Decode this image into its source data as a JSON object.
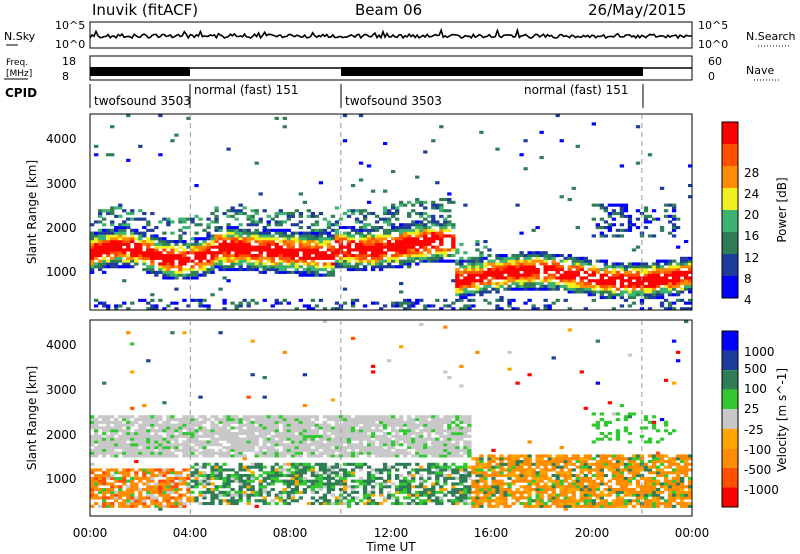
{
  "header": {
    "station": "Inuvik (fitACF)",
    "beam": "Beam 06",
    "date": "26/May/2015"
  },
  "strip": {
    "nsky_label": "N.Sky",
    "nsky_ticks": [
      "10^5",
      "10^0"
    ],
    "nsearch_label": "N.Search",
    "nsearch_ticks": [
      "10^5",
      "10^0"
    ],
    "freq_label": "Freq.",
    "freq_unit": "[MHz]",
    "freq_ticks": [
      "18",
      "8"
    ],
    "nave_label": "Nave",
    "nave_ticks": [
      "60",
      "0"
    ],
    "cpid_label": "CPID"
  },
  "cpid": [
    {
      "name": "twofsound 3503",
      "start": 0,
      "end": 4
    },
    {
      "name": "normal (fast) 151",
      "start": 4,
      "end": 10
    },
    {
      "name": "twofsound 3503",
      "start": 10,
      "end": 22
    },
    {
      "name": "normal (fast) 151",
      "start": 22,
      "end": 24
    }
  ],
  "colors": {
    "power": [
      "#0000ff",
      "#1e3c9a",
      "#2e7d55",
      "#3cb371",
      "#f0f020",
      "#ff8c00",
      "#ff5000",
      "#ff0000"
    ],
    "velocity": [
      "#0000ff",
      "#1e3c9a",
      "#2e7d55",
      "#32c832",
      "#c8c8c8",
      "#ffa500",
      "#ff8c00",
      "#ff5000",
      "#ff0000"
    ]
  },
  "chart_data": [
    {
      "type": "heatmap",
      "xlabel": "",
      "ylabel": "Slant Range [km]",
      "xlim": [
        0,
        24
      ],
      "ylim": [
        180,
        4600
      ],
      "y_ticks": [
        "1000",
        "2000",
        "3000",
        "4000"
      ],
      "colorbar": {
        "label": "Power [dB]",
        "ticks": [
          "4",
          "8",
          "12",
          "16",
          "20",
          "24",
          "28"
        ]
      },
      "bands": [
        {
          "start": 0,
          "end": 5,
          "r_from": 1500,
          "r_to": 2200,
          "quantity": "mixed"
        },
        {
          "start": 5,
          "end": 9,
          "r_from": 1400,
          "r_to": 2300,
          "quantity": "high"
        },
        {
          "start": 10,
          "end": 14,
          "r_from": 1300,
          "r_to": 2300,
          "quantity": "high"
        },
        {
          "start": 15,
          "end": 23,
          "r_from": 500,
          "r_to": 1400,
          "quantity": "high"
        }
      ]
    },
    {
      "type": "heatmap",
      "xlabel": "Time UT",
      "ylabel": "Slant Range [km]",
      "xlim": [
        0,
        24
      ],
      "ylim": [
        180,
        4600
      ],
      "x_ticks": [
        "00:00",
        "04:00",
        "08:00",
        "12:00",
        "16:00",
        "20:00",
        "00:00"
      ],
      "y_ticks": [
        "1000",
        "2000",
        "3000",
        "4000"
      ],
      "colorbar": {
        "label": "Velocity [m s^-1]",
        "ticks": [
          "1000",
          "500",
          "100",
          "25",
          "-25",
          "-100",
          "-500",
          "-1000"
        ]
      },
      "bands": [
        {
          "start": 0,
          "end": 15,
          "r_from": 1500,
          "r_to": 2400,
          "quantity": "near-zero"
        },
        {
          "start": 0,
          "end": 4,
          "r_from": 400,
          "r_to": 1200,
          "quantity": "negative"
        },
        {
          "start": 4,
          "end": 15,
          "r_from": 500,
          "r_to": 1300,
          "quantity": "positive"
        },
        {
          "start": 15,
          "end": 24,
          "r_from": 400,
          "r_to": 1500,
          "quantity": "negative"
        }
      ]
    }
  ]
}
